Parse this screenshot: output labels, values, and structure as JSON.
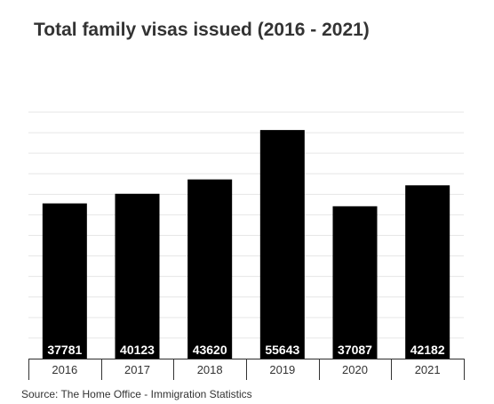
{
  "chart_data": {
    "type": "bar",
    "title": "Total family visas issued (2016 - 2021)",
    "categories": [
      "2016",
      "2017",
      "2018",
      "2019",
      "2020",
      "2021"
    ],
    "values": [
      37781,
      40123,
      43620,
      55643,
      37087,
      42182
    ],
    "data_labels": [
      "37781",
      "40123",
      "43620",
      "55643",
      "37087",
      "42182"
    ],
    "xlabel": "",
    "ylabel": "",
    "ylim": [
      0,
      60000
    ],
    "y_tick_step": 5000,
    "y_axis_labels_visible": false,
    "grid": true,
    "legend": "none",
    "bar_color": "#000000",
    "label_color": "#ffffff",
    "grid_color": "#e6e6e6"
  },
  "source": "Source: The Home Office - Immigration Statistics"
}
